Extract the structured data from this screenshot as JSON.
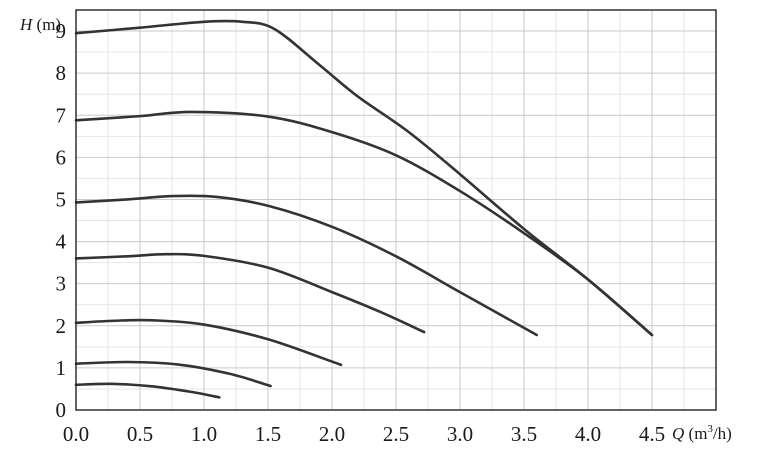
{
  "chart_data": {
    "type": "line",
    "title": "",
    "xlabel": {
      "symbol": "Q",
      "unit": " (m",
      "sup": "3",
      "unit_tail": "/h)"
    },
    "ylabel": {
      "symbol": "H",
      "unit": " (m)"
    },
    "xlim": [
      0,
      5
    ],
    "ylim": [
      0,
      9.5
    ],
    "x_ticks": [
      "0.0",
      "0.5",
      "1.0",
      "1.5",
      "2.0",
      "2.5",
      "3.0",
      "3.5",
      "4.0",
      "4.5"
    ],
    "y_ticks": [
      "0",
      "1",
      "2",
      "3",
      "4",
      "5",
      "6",
      "7",
      "8",
      "9"
    ],
    "grid": true,
    "line_color": "#333333",
    "series": [
      {
        "points": [
          [
            0,
            8.95
          ],
          [
            0.5,
            9.08
          ],
          [
            1.0,
            9.22
          ],
          [
            1.3,
            9.22
          ],
          [
            1.55,
            9.05
          ],
          [
            1.9,
            8.2
          ],
          [
            2.2,
            7.45
          ],
          [
            2.6,
            6.6
          ],
          [
            3.0,
            5.6
          ],
          [
            3.5,
            4.3
          ],
          [
            4.0,
            3.1
          ],
          [
            4.5,
            1.78
          ]
        ]
      },
      {
        "points": [
          [
            0,
            6.88
          ],
          [
            0.5,
            6.98
          ],
          [
            0.9,
            7.08
          ],
          [
            1.5,
            6.97
          ],
          [
            2.0,
            6.6
          ],
          [
            2.5,
            6.05
          ],
          [
            3.0,
            5.2
          ],
          [
            3.5,
            4.2
          ],
          [
            4.0,
            3.1
          ],
          [
            4.5,
            1.78
          ]
        ]
      },
      {
        "points": [
          [
            0,
            4.93
          ],
          [
            0.4,
            5.0
          ],
          [
            0.75,
            5.08
          ],
          [
            1.1,
            5.06
          ],
          [
            1.5,
            4.85
          ],
          [
            2.0,
            4.35
          ],
          [
            2.5,
            3.65
          ],
          [
            3.0,
            2.8
          ],
          [
            3.6,
            1.78
          ]
        ]
      },
      {
        "points": [
          [
            0,
            3.6
          ],
          [
            0.4,
            3.65
          ],
          [
            0.7,
            3.7
          ],
          [
            1.0,
            3.66
          ],
          [
            1.5,
            3.38
          ],
          [
            2.0,
            2.8
          ],
          [
            2.4,
            2.3
          ],
          [
            2.72,
            1.85
          ]
        ]
      },
      {
        "points": [
          [
            0,
            2.07
          ],
          [
            0.3,
            2.12
          ],
          [
            0.6,
            2.13
          ],
          [
            1.0,
            2.03
          ],
          [
            1.5,
            1.68
          ],
          [
            2.0,
            1.15
          ],
          [
            2.07,
            1.07
          ]
        ]
      },
      {
        "points": [
          [
            0,
            1.1
          ],
          [
            0.4,
            1.14
          ],
          [
            0.8,
            1.08
          ],
          [
            1.2,
            0.86
          ],
          [
            1.52,
            0.57
          ]
        ]
      },
      {
        "points": [
          [
            0,
            0.6
          ],
          [
            0.3,
            0.62
          ],
          [
            0.6,
            0.56
          ],
          [
            0.9,
            0.43
          ],
          [
            1.12,
            0.3
          ]
        ]
      }
    ]
  }
}
